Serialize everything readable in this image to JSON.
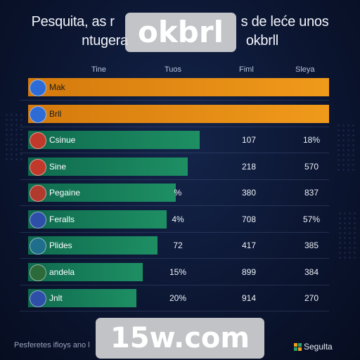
{
  "title": {
    "line1_a": "Pesquita, as r",
    "line1_b": "s de leće unos",
    "line2_a": "ntugera",
    "line2_b": "okbrll"
  },
  "watermarks": {
    "top": "okbrl",
    "bottom": "15w.com"
  },
  "columns": [
    "Tine",
    "Tuos",
    "Fiml",
    "Sleya"
  ],
  "colors": {
    "orange": "#f09a1b",
    "green": "#1e8f63",
    "background": "#0b1530"
  },
  "footer": {
    "left": "Pesferetes ifioys ano l",
    "right": "Segulta"
  },
  "rows": [
    {
      "icon": "emblem-icon",
      "label": "Mak",
      "c2": "",
      "c3": "",
      "c4": ""
    },
    {
      "icon": "emblem-icon",
      "label": "Brll",
      "c2": "",
      "c3": "",
      "c4": ""
    },
    {
      "icon": "emblem-icon",
      "label": "Csinue",
      "c2": "",
      "c3": "107",
      "c4": "18%"
    },
    {
      "icon": "emblem-icon",
      "label": "Sine",
      "c2": "",
      "c3": "218",
      "c4": "570"
    },
    {
      "icon": "emblem-icon",
      "label": "Pegaine",
      "c2": "%",
      "c3": "380",
      "c4": "837"
    },
    {
      "icon": "emblem-icon",
      "label": "Feralls",
      "c2": "4%",
      "c3": "708",
      "c4": "57%"
    },
    {
      "icon": "emblem-icon",
      "label": "Plides",
      "c2": "72",
      "c3": "417",
      "c4": "385"
    },
    {
      "icon": "emblem-icon",
      "label": "andela",
      "c2": "15%",
      "c3": "899",
      "c4": "384"
    },
    {
      "icon": "emblem-icon",
      "label": "Jnlt",
      "c2": "20%",
      "c3": "914",
      "c4": "270"
    }
  ],
  "chart_data": {
    "type": "bar",
    "orientation": "horizontal",
    "categories": [
      "Mak",
      "Brll",
      "Csinue",
      "Sine",
      "Pegaine",
      "Feralls",
      "Plides",
      "andela",
      "Jnlt"
    ],
    "values": [
      100,
      100,
      57,
      53,
      49,
      46,
      43,
      38,
      36
    ],
    "bar_colors": [
      "#f09a1b",
      "#f09a1b",
      "#1e8f63",
      "#1e8f63",
      "#1e8f63",
      "#1e8f63",
      "#1e8f63",
      "#1e8f63",
      "#1e8f63"
    ],
    "xlim": [
      0,
      100
    ],
    "title": "",
    "xlabel": "",
    "ylabel": ""
  }
}
